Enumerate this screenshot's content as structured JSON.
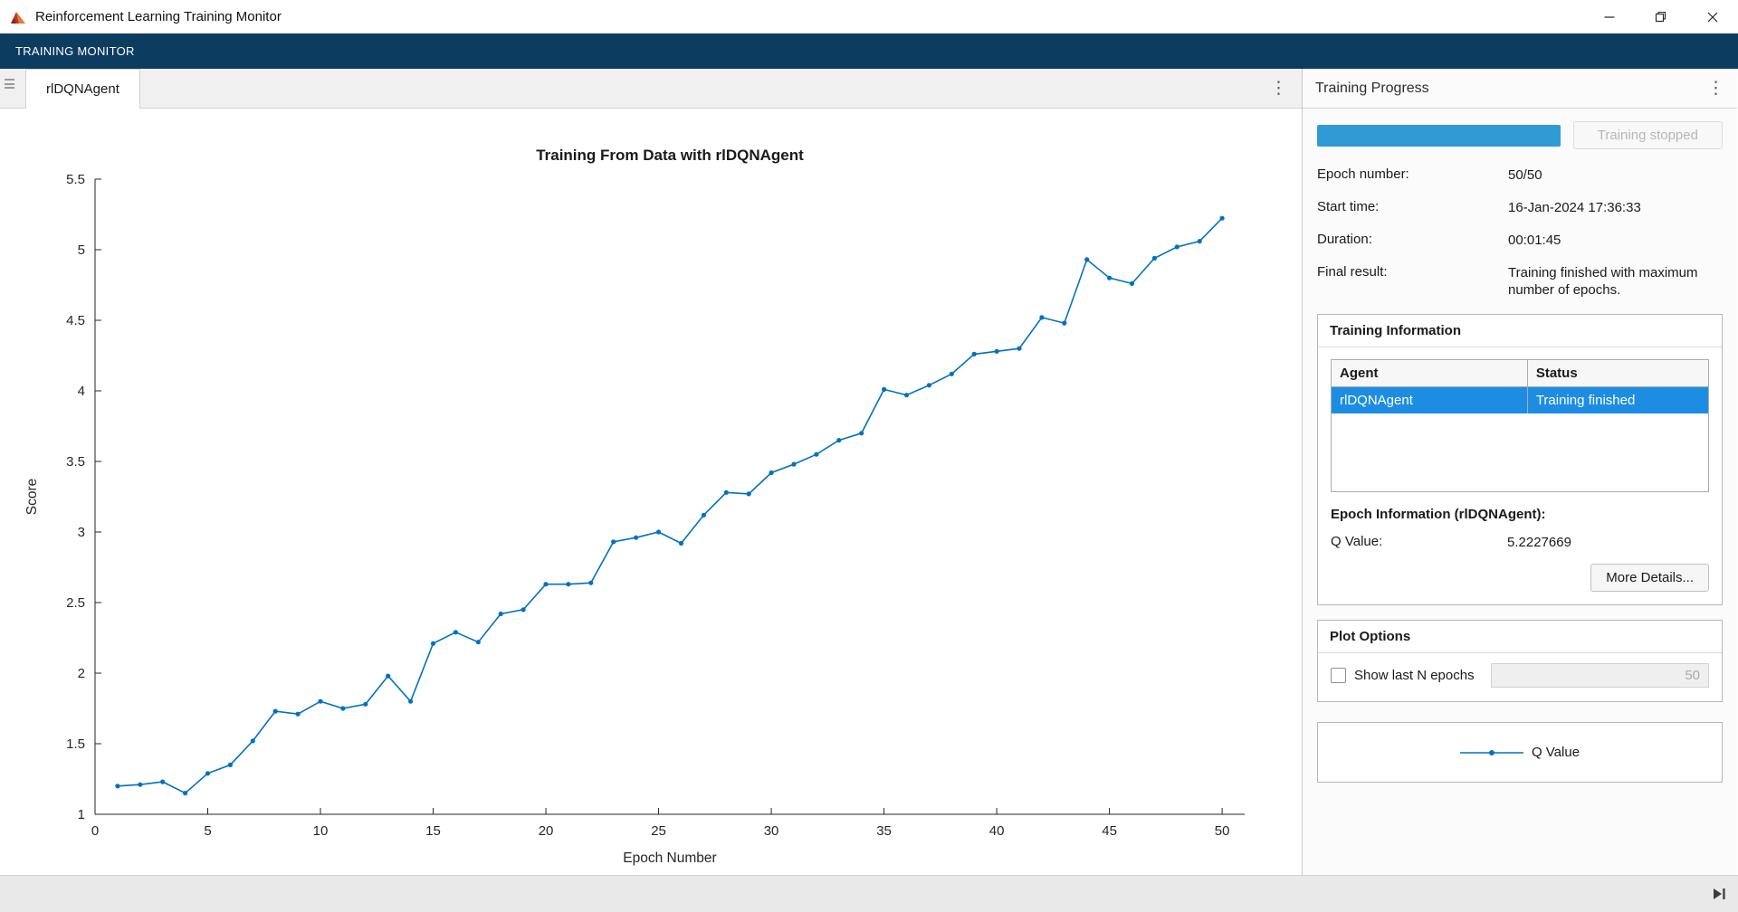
{
  "window": {
    "title": "Reinforcement Learning Training Monitor"
  },
  "toolbar": {
    "label": "TRAINING MONITOR"
  },
  "icons": {
    "kebab": "⋮"
  },
  "colors": {
    "accent_blue": "#0072BD",
    "progress_blue": "#2E9BD6",
    "selection_blue": "#1D8DE4",
    "toolstrip_navy": "#0C3C60"
  },
  "tabs": [
    {
      "label": "rlDQNAgent",
      "active": true
    }
  ],
  "progress_panel": {
    "title": "Training Progress",
    "progress_percent": 100,
    "stop_button_label": "Training stopped",
    "fields": [
      {
        "label": "Epoch number:",
        "value": "50/50"
      },
      {
        "label": "Start time:",
        "value": "16-Jan-2024 17:36:33"
      },
      {
        "label": "Duration:",
        "value": "00:01:45"
      },
      {
        "label": "Final result:",
        "value": "Training finished with maximum number of epochs."
      }
    ],
    "training_information": {
      "title": "Training Information",
      "table": {
        "headers": [
          "Agent",
          "Status"
        ],
        "rows": [
          {
            "agent": "rlDQNAgent",
            "status": "Training finished",
            "selected": true
          }
        ]
      },
      "epoch_info_label": "Epoch Information (rlDQNAgent):",
      "q_value_label": "Q Value:",
      "q_value": "5.2227669",
      "more_details_button": "More Details..."
    },
    "plot_options": {
      "title": "Plot Options",
      "show_last_n_label": "Show last N epochs",
      "checkbox_checked": false,
      "n_value": "50"
    },
    "legend": {
      "items": [
        {
          "label": "Q Value",
          "color": "#0072BD"
        }
      ]
    }
  },
  "chart_data": {
    "type": "line",
    "title": "Training From Data with rlDQNAgent",
    "xlabel": "Epoch Number",
    "ylabel": "Score",
    "xlim": [
      0,
      51
    ],
    "ylim": [
      1,
      5.5
    ],
    "xticks": [
      0,
      5,
      10,
      15,
      20,
      25,
      30,
      35,
      40,
      45,
      50
    ],
    "yticks": [
      1,
      1.5,
      2,
      2.5,
      3,
      3.5,
      4,
      4.5,
      5,
      5.5
    ],
    "grid": false,
    "legend_position": "separate-panel",
    "series": [
      {
        "name": "Q Value",
        "color": "#0072BD",
        "marker": "point",
        "x": [
          1,
          2,
          3,
          4,
          5,
          6,
          7,
          8,
          9,
          10,
          11,
          12,
          13,
          14,
          15,
          16,
          17,
          18,
          19,
          20,
          21,
          22,
          23,
          24,
          25,
          26,
          27,
          28,
          29,
          30,
          31,
          32,
          33,
          34,
          35,
          36,
          37,
          38,
          39,
          40,
          41,
          42,
          43,
          44,
          45,
          46,
          47,
          48,
          49,
          50
        ],
        "values": [
          1.2,
          1.21,
          1.23,
          1.15,
          1.29,
          1.35,
          1.52,
          1.73,
          1.71,
          1.8,
          1.75,
          1.78,
          1.98,
          1.8,
          2.21,
          2.29,
          2.22,
          2.42,
          2.45,
          2.63,
          2.63,
          2.64,
          2.93,
          2.96,
          3.0,
          2.92,
          3.12,
          3.28,
          3.27,
          3.42,
          3.48,
          3.55,
          3.65,
          3.7,
          4.01,
          3.97,
          4.04,
          4.12,
          4.26,
          4.28,
          4.3,
          4.52,
          4.48,
          4.93,
          4.8,
          4.76,
          4.94,
          5.02,
          5.06,
          5.2227669
        ]
      }
    ]
  }
}
